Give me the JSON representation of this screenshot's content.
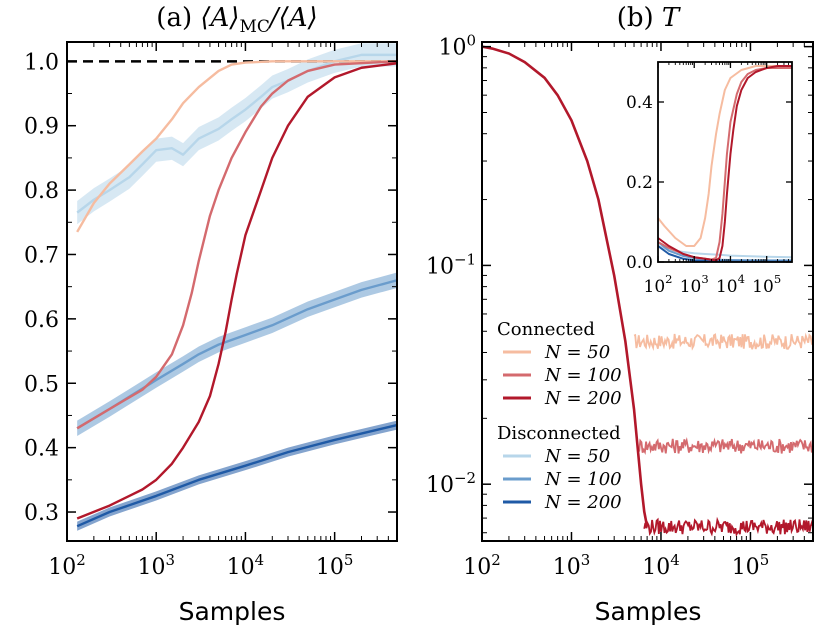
{
  "chart_data": [
    {
      "id": "a",
      "type": "line",
      "title": "(a) ⟨A⟩MC/⟨A⟩",
      "title_prefix": "(a) ",
      "title_math": "⟨A⟩",
      "title_sub": "MC",
      "title_suffix": "/⟨A⟩",
      "xlabel": "Samples",
      "xscale": "log",
      "xlim": [
        100,
        500000
      ],
      "ylim": [
        0.255,
        1.03
      ],
      "xticks": [
        {
          "v": 100,
          "base": "10",
          "exp": "2"
        },
        {
          "v": 1000,
          "base": "10",
          "exp": "3"
        },
        {
          "v": 10000,
          "base": "10",
          "exp": "4"
        },
        {
          "v": 100000,
          "base": "10",
          "exp": "5"
        }
      ],
      "yticks": [
        {
          "v": 0.3,
          "label": "0.3"
        },
        {
          "v": 0.4,
          "label": "0.4"
        },
        {
          "v": 0.5,
          "label": "0.5"
        },
        {
          "v": 0.6,
          "label": "0.6"
        },
        {
          "v": 0.7,
          "label": "0.7"
        },
        {
          "v": 0.8,
          "label": "0.8"
        },
        {
          "v": 0.9,
          "label": "0.9"
        },
        {
          "v": 1.0,
          "label": "1.0"
        }
      ],
      "reference_line": 1.0,
      "series": [
        {
          "name": "Disconnected N = 50",
          "group": "disconnected",
          "N": 50,
          "color": "#b7d6ea",
          "band": 0.018,
          "x": [
            130,
            200,
            300,
            500,
            700,
            1000,
            1500,
            2000,
            3000,
            5000,
            7000,
            10000,
            15000,
            20000,
            30000,
            50000,
            100000,
            200000,
            500000
          ],
          "y": [
            0.765,
            0.785,
            0.8,
            0.82,
            0.84,
            0.862,
            0.865,
            0.855,
            0.88,
            0.895,
            0.91,
            0.925,
            0.945,
            0.96,
            0.97,
            0.985,
            1.0,
            1.01,
            1.01
          ]
        },
        {
          "name": "Disconnected N = 100",
          "group": "disconnected",
          "N": 100,
          "color": "#6a9ccc",
          "band": 0.012,
          "x": [
            130,
            300,
            1000,
            2000,
            3000,
            5000,
            10000,
            20000,
            50000,
            100000,
            200000,
            500000
          ],
          "y": [
            0.43,
            0.46,
            0.505,
            0.53,
            0.545,
            0.56,
            0.575,
            0.59,
            0.615,
            0.63,
            0.645,
            0.66
          ]
        },
        {
          "name": "Disconnected N = 200",
          "group": "disconnected",
          "N": 200,
          "color": "#1f5aa6",
          "band": 0.007,
          "x": [
            130,
            300,
            1000,
            3000,
            10000,
            30000,
            100000,
            500000
          ],
          "y": [
            0.278,
            0.3,
            0.325,
            0.35,
            0.372,
            0.393,
            0.412,
            0.435
          ]
        },
        {
          "name": "Connected N = 50",
          "group": "connected",
          "N": 50,
          "color": "#f6bca0",
          "band": 0,
          "x": [
            130,
            200,
            300,
            500,
            700,
            1000,
            1500,
            2000,
            3000,
            5000,
            7000,
            10000,
            20000,
            50000,
            500000
          ],
          "y": [
            0.735,
            0.78,
            0.81,
            0.84,
            0.86,
            0.88,
            0.91,
            0.935,
            0.96,
            0.985,
            0.995,
            0.998,
            1.0,
            1.0,
            1.0
          ]
        },
        {
          "name": "Connected N = 100",
          "group": "connected",
          "N": 100,
          "color": "#d46a6e",
          "band": 0,
          "x": [
            130,
            300,
            700,
            1000,
            1500,
            2000,
            2500,
            3000,
            4000,
            5000,
            7000,
            10000,
            15000,
            20000,
            30000,
            50000,
            100000,
            500000
          ],
          "y": [
            0.43,
            0.46,
            0.49,
            0.51,
            0.545,
            0.59,
            0.64,
            0.69,
            0.76,
            0.8,
            0.85,
            0.89,
            0.93,
            0.95,
            0.97,
            0.985,
            0.995,
            1.0
          ]
        },
        {
          "name": "Connected N = 200",
          "group": "connected",
          "N": 200,
          "color": "#b2182b",
          "band": 0,
          "x": [
            130,
            300,
            700,
            1000,
            1500,
            2000,
            3000,
            4000,
            5000,
            6000,
            7000,
            8000,
            10000,
            15000,
            20000,
            30000,
            50000,
            100000,
            200000,
            500000
          ],
          "y": [
            0.29,
            0.31,
            0.335,
            0.35,
            0.375,
            0.4,
            0.44,
            0.48,
            0.53,
            0.58,
            0.63,
            0.67,
            0.73,
            0.8,
            0.85,
            0.9,
            0.945,
            0.975,
            0.99,
            0.997
          ]
        }
      ]
    },
    {
      "id": "b",
      "type": "line",
      "title": "(b) T",
      "title_prefix": "(b) ",
      "title_math": "T",
      "xlabel": "Samples",
      "xscale": "log",
      "yscale": "log",
      "xlim": [
        100,
        500000
      ],
      "ylim": [
        0.0055,
        1.05
      ],
      "xticks": [
        {
          "v": 100,
          "base": "10",
          "exp": "2"
        },
        {
          "v": 1000,
          "base": "10",
          "exp": "3"
        },
        {
          "v": 10000,
          "base": "10",
          "exp": "4"
        },
        {
          "v": 100000,
          "base": "10",
          "exp": "5"
        }
      ],
      "yticks": [
        {
          "v": 1,
          "base": "10",
          "exp": "0"
        },
        {
          "v": 0.1,
          "base": "10",
          "exp": "−1"
        },
        {
          "v": 0.01,
          "base": "10",
          "exp": "−2"
        }
      ],
      "shared_curve": {
        "x": [
          100,
          130,
          200,
          300,
          500,
          700,
          1000,
          1500,
          2000,
          3000,
          4000,
          5000,
          6000,
          6500,
          7000
        ],
        "y": [
          1.0,
          0.98,
          0.93,
          0.85,
          0.72,
          0.6,
          0.46,
          0.3,
          0.2,
          0.09,
          0.045,
          0.022,
          0.01,
          0.0075,
          0.0064
        ]
      },
      "series": [
        {
          "name": "Connected N = 50",
          "N": 50,
          "color": "#f6bca0",
          "plateau": 0.045,
          "start": 5000
        },
        {
          "name": "Connected N = 100",
          "N": 100,
          "color": "#d46a6e",
          "plateau": 0.015,
          "start": 5700
        },
        {
          "name": "Connected N = 200",
          "N": 200,
          "color": "#b2182b",
          "plateau": 0.0064,
          "start": 6500
        }
      ],
      "inset": {
        "xscale": "log",
        "xlim": [
          100,
          500000
        ],
        "ylim": [
          0,
          0.5
        ],
        "xticks": [
          {
            "v": 100,
            "base": "10",
            "exp": "2"
          },
          {
            "v": 1000,
            "base": "10",
            "exp": "3"
          },
          {
            "v": 10000,
            "base": "10",
            "exp": "4"
          },
          {
            "v": 100000,
            "base": "10",
            "exp": "5"
          }
        ],
        "yticks": [
          {
            "v": 0.0,
            "label": "0.0"
          },
          {
            "v": 0.2,
            "label": "0.2"
          },
          {
            "v": 0.4,
            "label": "0.4"
          }
        ],
        "series": [
          {
            "name": "Disconnected N = 50",
            "color": "#b7d6ea",
            "x": [
              100,
              200,
              500,
              1000,
              2000,
              5000,
              10000,
              100000,
              500000
            ],
            "y": [
              0.04,
              0.03,
              0.025,
              0.022,
              0.02,
              0.018,
              0.016,
              0.013,
              0.012
            ]
          },
          {
            "name": "Disconnected N = 100",
            "color": "#6a9ccc",
            "x": [
              100,
              200,
              500,
              1000,
              3000,
              10000,
              100000,
              500000
            ],
            "y": [
              0.05,
              0.028,
              0.015,
              0.01,
              0.006,
              0.005,
              0.004,
              0.004
            ]
          },
          {
            "name": "Disconnected N = 200",
            "color": "#1f5aa6",
            "x": [
              100,
              200,
              500,
              1000,
              3000,
              10000,
              100000,
              500000
            ],
            "y": [
              0.04,
              0.02,
              0.008,
              0.004,
              0.002,
              0.001,
              0.001,
              0.001
            ]
          },
          {
            "name": "Connected N = 50",
            "color": "#f6bca0",
            "x": [
              100,
              150,
              300,
              600,
              1000,
              1500,
              2000,
              2500,
              3000,
              4000,
              5000,
              7000,
              10000,
              20000,
              50000,
              100000,
              200000,
              500000
            ],
            "y": [
              0.11,
              0.09,
              0.06,
              0.04,
              0.04,
              0.06,
              0.11,
              0.17,
              0.24,
              0.32,
              0.37,
              0.43,
              0.46,
              0.48,
              0.49,
              0.49,
              0.49,
              0.49
            ]
          },
          {
            "name": "Connected N = 100",
            "color": "#d46a6e",
            "x": [
              100,
              200,
              500,
              1000,
              2000,
              3000,
              4000,
              5000,
              6000,
              7000,
              8000,
              10000,
              15000,
              20000,
              30000,
              50000,
              100000,
              200000,
              500000
            ],
            "y": [
              0.05,
              0.035,
              0.02,
              0.012,
              0.008,
              0.006,
              0.01,
              0.05,
              0.12,
              0.2,
              0.27,
              0.35,
              0.42,
              0.45,
              0.47,
              0.48,
              0.485,
              0.485,
              0.485
            ]
          },
          {
            "name": "Connected N = 200",
            "color": "#b2182b",
            "x": [
              100,
              200,
              500,
              1000,
              2000,
              4000,
              5000,
              6000,
              7000,
              8000,
              10000,
              12000,
              15000,
              20000,
              30000,
              50000,
              100000,
              200000,
              500000
            ],
            "y": [
              0.06,
              0.04,
              0.02,
              0.012,
              0.008,
              0.004,
              0.01,
              0.04,
              0.1,
              0.17,
              0.27,
              0.33,
              0.39,
              0.43,
              0.46,
              0.475,
              0.485,
              0.49,
              0.49
            ]
          }
        ]
      }
    }
  ],
  "legend": {
    "placement": "lower-left of panel (b)",
    "groups": [
      {
        "title": "Connected",
        "items": [
          {
            "label": "N = 50",
            "color": "#f6bca0"
          },
          {
            "label": "N = 100",
            "color": "#d46a6e"
          },
          {
            "label": "N = 200",
            "color": "#b2182b"
          }
        ]
      },
      {
        "title": "Disconnected",
        "items": [
          {
            "label": "N = 50",
            "color": "#b7d6ea"
          },
          {
            "label": "N = 100",
            "color": "#6a9ccc"
          },
          {
            "label": "N = 200",
            "color": "#1f5aa6"
          }
        ]
      }
    ]
  }
}
